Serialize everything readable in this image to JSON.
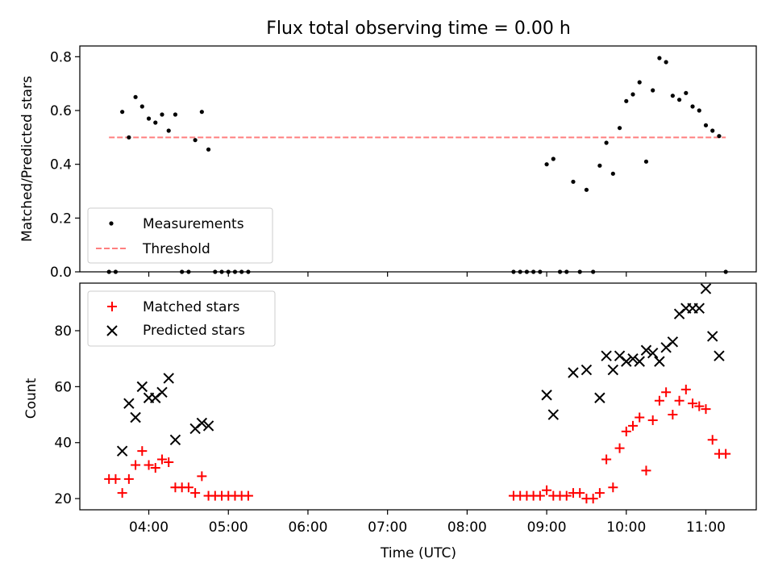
{
  "colors": {
    "measurement": "#000000",
    "threshold": "#ff7f7f",
    "matched": "#ff0000",
    "predicted": "#000000"
  },
  "chart_data": [
    {
      "type": "scatter",
      "title": "Flux total observing time = 0.00 h",
      "xlabel": "",
      "ylabel": "Matched/Predicted stars",
      "ylim": [
        0.0,
        0.84
      ],
      "yticks": [
        0.0,
        0.2,
        0.4,
        0.6,
        0.8
      ],
      "ytick_labels": [
        "0.0",
        "0.2",
        "0.4",
        "0.6",
        "0.8"
      ],
      "legend_position": "lower-left",
      "legend": [
        "Measurements",
        "Threshold"
      ],
      "threshold": {
        "value": 0.5,
        "x_start": "03:30",
        "x_end": "11:15"
      },
      "series": [
        {
          "name": "Measurements",
          "marker": "dot",
          "points": [
            [
              "03:30",
              0.0
            ],
            [
              "03:35",
              0.0
            ],
            [
              "03:40",
              0.595
            ],
            [
              "03:45",
              0.5
            ],
            [
              "03:50",
              0.65
            ],
            [
              "03:55",
              0.615
            ],
            [
              "04:00",
              0.57
            ],
            [
              "04:05",
              0.555
            ],
            [
              "04:10",
              0.585
            ],
            [
              "04:15",
              0.525
            ],
            [
              "04:20",
              0.585
            ],
            [
              "04:25",
              0.0
            ],
            [
              "04:30",
              0.0
            ],
            [
              "04:35",
              0.49
            ],
            [
              "04:40",
              0.595
            ],
            [
              "04:45",
              0.455
            ],
            [
              "04:50",
              0.0
            ],
            [
              "04:55",
              0.0
            ],
            [
              "05:00",
              0.0
            ],
            [
              "05:05",
              0.0
            ],
            [
              "05:10",
              0.0
            ],
            [
              "05:15",
              0.0
            ],
            [
              "08:35",
              0.0
            ],
            [
              "08:40",
              0.0
            ],
            [
              "08:45",
              0.0
            ],
            [
              "08:50",
              0.0
            ],
            [
              "08:55",
              0.0
            ],
            [
              "09:00",
              0.4
            ],
            [
              "09:05",
              0.42
            ],
            [
              "09:10",
              0.0
            ],
            [
              "09:15",
              0.0
            ],
            [
              "09:20",
              0.335
            ],
            [
              "09:25",
              0.0
            ],
            [
              "09:30",
              0.305
            ],
            [
              "09:35",
              0.0
            ],
            [
              "09:40",
              0.395
            ],
            [
              "09:45",
              0.48
            ],
            [
              "09:50",
              0.365
            ],
            [
              "09:55",
              0.535
            ],
            [
              "10:00",
              0.635
            ],
            [
              "10:05",
              0.66
            ],
            [
              "10:10",
              0.705
            ],
            [
              "10:15",
              0.41
            ],
            [
              "10:20",
              0.675
            ],
            [
              "10:25",
              0.795
            ],
            [
              "10:30",
              0.78
            ],
            [
              "10:35",
              0.655
            ],
            [
              "10:40",
              0.64
            ],
            [
              "10:45",
              0.665
            ],
            [
              "10:50",
              0.615
            ],
            [
              "10:55",
              0.6
            ],
            [
              "11:00",
              0.545
            ],
            [
              "11:05",
              0.525
            ],
            [
              "11:10",
              0.505
            ],
            [
              "11:15",
              0.0
            ]
          ]
        }
      ]
    },
    {
      "type": "scatter",
      "title": "",
      "xlabel": "Time (UTC)",
      "ylabel": "Count",
      "xlim": [
        "03:08",
        "11:38"
      ],
      "xticks": [
        "04:00",
        "05:00",
        "06:00",
        "07:00",
        "08:00",
        "09:00",
        "10:00",
        "11:00"
      ],
      "ylim": [
        16,
        97
      ],
      "yticks": [
        20,
        40,
        60,
        80
      ],
      "ytick_labels": [
        "20",
        "40",
        "60",
        "80"
      ],
      "legend_position": "upper-left",
      "legend": [
        "Matched stars",
        "Predicted stars"
      ],
      "series": [
        {
          "name": "Matched stars",
          "marker": "plus",
          "points": [
            [
              "03:30",
              27
            ],
            [
              "03:35",
              27
            ],
            [
              "03:40",
              22
            ],
            [
              "03:45",
              27
            ],
            [
              "03:50",
              32
            ],
            [
              "03:55",
              37
            ],
            [
              "04:00",
              32
            ],
            [
              "04:05",
              31
            ],
            [
              "04:10",
              34
            ],
            [
              "04:15",
              33
            ],
            [
              "04:20",
              24
            ],
            [
              "04:25",
              24
            ],
            [
              "04:30",
              24
            ],
            [
              "04:35",
              22
            ],
            [
              "04:40",
              28
            ],
            [
              "04:45",
              21
            ],
            [
              "04:50",
              21
            ],
            [
              "04:55",
              21
            ],
            [
              "05:00",
              21
            ],
            [
              "05:05",
              21
            ],
            [
              "05:10",
              21
            ],
            [
              "05:15",
              21
            ],
            [
              "08:35",
              21
            ],
            [
              "08:40",
              21
            ],
            [
              "08:45",
              21
            ],
            [
              "08:50",
              21
            ],
            [
              "08:55",
              21
            ],
            [
              "09:00",
              23
            ],
            [
              "09:05",
              21
            ],
            [
              "09:10",
              21
            ],
            [
              "09:15",
              21
            ],
            [
              "09:20",
              22
            ],
            [
              "09:25",
              22
            ],
            [
              "09:30",
              20
            ],
            [
              "09:35",
              20
            ],
            [
              "09:40",
              22
            ],
            [
              "09:45",
              34
            ],
            [
              "09:50",
              24
            ],
            [
              "09:55",
              38
            ],
            [
              "10:00",
              44
            ],
            [
              "10:05",
              46
            ],
            [
              "10:10",
              49
            ],
            [
              "10:15",
              30
            ],
            [
              "10:20",
              48
            ],
            [
              "10:25",
              55
            ],
            [
              "10:30",
              58
            ],
            [
              "10:35",
              50
            ],
            [
              "10:40",
              55
            ],
            [
              "10:45",
              59
            ],
            [
              "10:50",
              54
            ],
            [
              "10:55",
              53
            ],
            [
              "11:00",
              52
            ],
            [
              "11:05",
              41
            ],
            [
              "11:10",
              36
            ],
            [
              "11:15",
              36
            ]
          ]
        },
        {
          "name": "Predicted stars",
          "marker": "x",
          "points": [
            [
              "03:40",
              37
            ],
            [
              "03:45",
              54
            ],
            [
              "03:50",
              49
            ],
            [
              "03:55",
              60
            ],
            [
              "04:00",
              56
            ],
            [
              "04:05",
              56
            ],
            [
              "04:10",
              58
            ],
            [
              "04:15",
              63
            ],
            [
              "04:20",
              41
            ],
            [
              "04:35",
              45
            ],
            [
              "04:40",
              47
            ],
            [
              "04:45",
              46
            ],
            [
              "09:00",
              57
            ],
            [
              "09:05",
              50
            ],
            [
              "09:20",
              65
            ],
            [
              "09:30",
              66
            ],
            [
              "09:40",
              56
            ],
            [
              "09:45",
              71
            ],
            [
              "09:50",
              66
            ],
            [
              "09:55",
              71
            ],
            [
              "10:00",
              69
            ],
            [
              "10:05",
              70
            ],
            [
              "10:10",
              69
            ],
            [
              "10:15",
              73
            ],
            [
              "10:20",
              72
            ],
            [
              "10:25",
              69
            ],
            [
              "10:30",
              74
            ],
            [
              "10:35",
              76
            ],
            [
              "10:40",
              86
            ],
            [
              "10:45",
              88
            ],
            [
              "10:50",
              88
            ],
            [
              "10:55",
              88
            ],
            [
              "11:00",
              95
            ],
            [
              "11:05",
              78
            ],
            [
              "11:10",
              71
            ]
          ]
        }
      ]
    }
  ]
}
